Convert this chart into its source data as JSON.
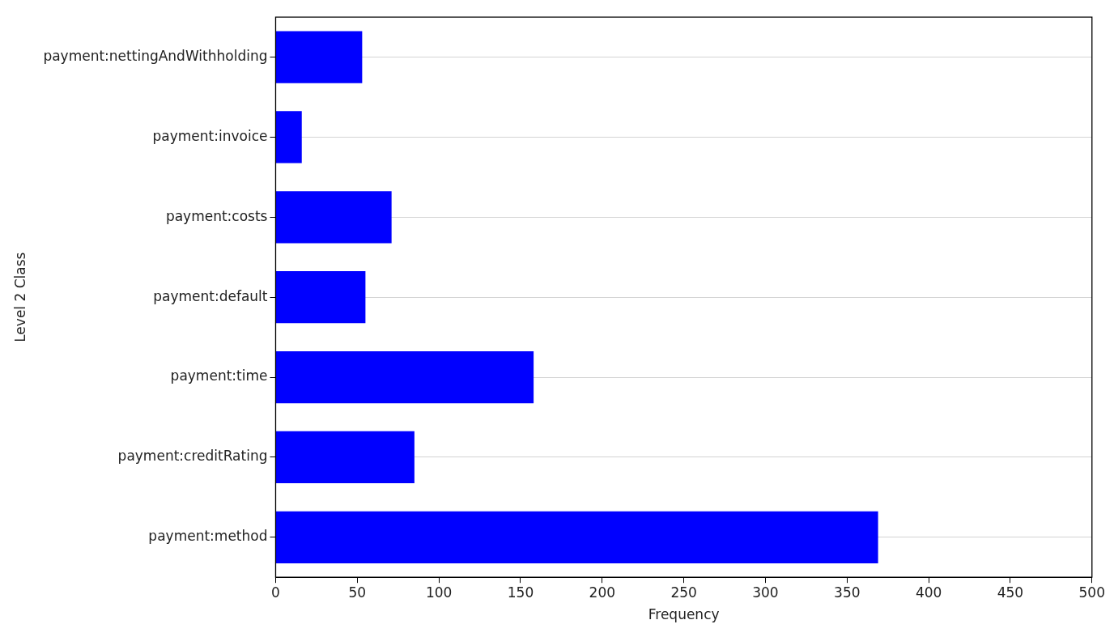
{
  "chart_data": {
    "type": "bar",
    "orientation": "horizontal",
    "xlabel": "Frequency",
    "ylabel": "Level 2 Class",
    "categories": [
      "payment:nettingAndWithholding",
      "payment:invoice",
      "payment:costs",
      "payment:default",
      "payment:time",
      "payment:creditRating",
      "payment:method"
    ],
    "values": [
      53,
      16,
      71,
      55,
      158,
      85,
      369
    ],
    "color": "#0000ff",
    "xlim": [
      0,
      500
    ],
    "xticks": [
      0,
      50,
      100,
      150,
      200,
      250,
      300,
      350,
      400,
      450,
      500
    ],
    "grid": "y",
    "legend": false
  }
}
